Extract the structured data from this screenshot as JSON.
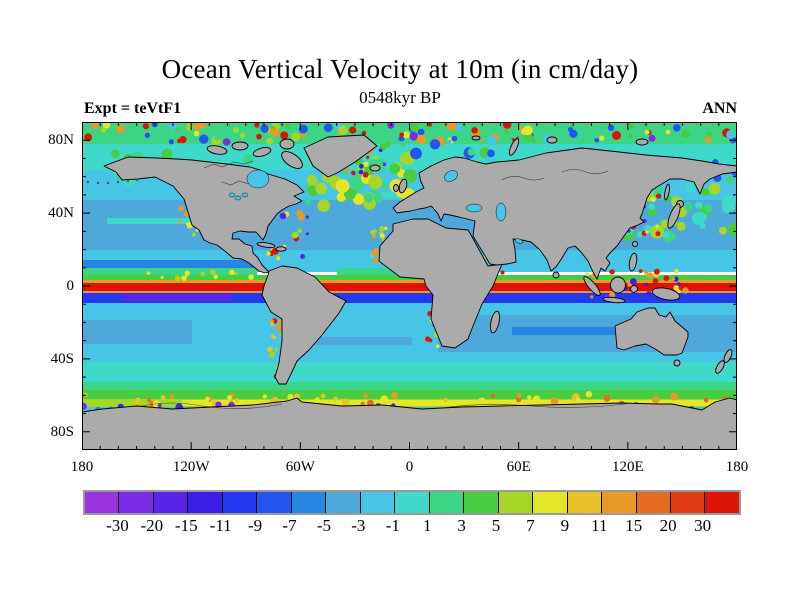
{
  "header": {
    "title": "Ocean Vertical Velocity at 10m (in cm/day)",
    "subtitle": "0548kyr BP",
    "experiment_label": "Expt = teVtF1",
    "season_label": "ANN"
  },
  "chart_data": {
    "type": "heatmap",
    "title": "Ocean Vertical Velocity at 10m (in cm/day)",
    "subtitle": "0548kyr BP",
    "experiment": "teVtF1",
    "season": "ANN",
    "units": "cm/day",
    "projection": "cylindrical equidistant, 180W-180E, 90S-90N",
    "x_axis": {
      "range_deg": [
        -180,
        180
      ],
      "minor_step_deg": 10,
      "ticks": [
        {
          "label": "180",
          "lon": -180
        },
        {
          "label": "120W",
          "lon": -120
        },
        {
          "label": "60W",
          "lon": -60
        },
        {
          "label": "0",
          "lon": 0
        },
        {
          "label": "60E",
          "lon": 60
        },
        {
          "label": "120E",
          "lon": 120
        },
        {
          "label": "180",
          "lon": 180
        }
      ]
    },
    "y_axis": {
      "range_deg": [
        -90,
        90
      ],
      "minor_step_deg": 10,
      "ticks": [
        {
          "label": "80N",
          "lat": 80
        },
        {
          "label": "40N",
          "lat": 40
        },
        {
          "label": "0",
          "lat": 0
        },
        {
          "label": "40S",
          "lat": -40
        },
        {
          "label": "80S",
          "lat": -80
        }
      ]
    },
    "levels": [
      -30,
      -20,
      -15,
      -11,
      -9,
      -7,
      -5,
      -3,
      -1,
      1,
      3,
      5,
      7,
      9,
      11,
      15,
      20,
      30
    ],
    "palette": [
      "#9933dd",
      "#7b2be8",
      "#5a24e8",
      "#3a1ee8",
      "#2537f0",
      "#2356f0",
      "#2585e0",
      "#4fa8dc",
      "#46c5e6",
      "#3fd9cb",
      "#3cd586",
      "#49cc41",
      "#a8d626",
      "#e6e629",
      "#e8c228",
      "#e89a26",
      "#e56a22",
      "#e03c15",
      "#dc1405"
    ],
    "land_color": "#ababab",
    "coastline_color": "#000000",
    "latitudinal_structure": [
      {
        "lat_range": "60N-90N",
        "value_cm_day": "patchy +/-3 to 15, strong spots near Greenland margins"
      },
      {
        "lat_range": "15N-55N",
        "value_cm_day": "-3 to 1 over subtropical gyres"
      },
      {
        "lat_range": "4N-12N",
        "value_cm_day": "-9 to -5 band with 1-5 green streaks (Pacific, Atlantic)"
      },
      {
        "lat_range": "3S-3N",
        "value_cm_day": "greater than 30 equatorial upwelling stripe (Pacific, Atlantic, Indian)"
      },
      {
        "lat_range": "4S-9S",
        "value_cm_day": "-15 to -9 downwelling band flanking equator"
      },
      {
        "lat_range": "10S-40S",
        "value_cm_day": "-3 to 1, bluer (-5) in south Indian Ocean"
      },
      {
        "lat_range": "42S-58S",
        "value_cm_day": "1 to 7 circumpolar upwelling band"
      },
      {
        "lat_range": "58S-64S",
        "value_cm_day": "7 to 20 yellow/orange band along Antarctic margin"
      },
      {
        "lat_range": "64S-68S",
        "value_cm_day": "-30 to -9 blue/purple coastal downwelling spots"
      }
    ],
    "coastal_features": "Strong alternating upwelling/downwelling (|w| greater than 15 cm/day) along Peru-Chile, California, NW and SW Africa, Somalia, Gulf Stream, Kuroshio, Indonesian seas and Greenland coasts"
  }
}
